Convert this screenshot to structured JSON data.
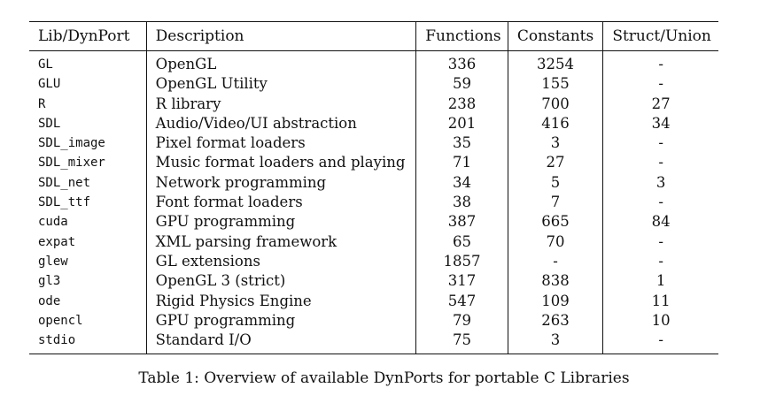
{
  "table": {
    "headers": {
      "lib": "Lib/DynPort",
      "description": "Description",
      "functions": "Functions",
      "constants": "Constants",
      "struct_union": "Struct/Union"
    },
    "rows": [
      {
        "lib": "GL",
        "description": "OpenGL",
        "functions": "336",
        "constants": "3254",
        "struct_union": "-"
      },
      {
        "lib": "GLU",
        "description": "OpenGL Utility",
        "functions": "59",
        "constants": "155",
        "struct_union": "-"
      },
      {
        "lib": "R",
        "description": "R library",
        "functions": "238",
        "constants": "700",
        "struct_union": "27"
      },
      {
        "lib": "SDL",
        "description": "Audio/Video/UI abstraction",
        "functions": "201",
        "constants": "416",
        "struct_union": "34"
      },
      {
        "lib": "SDL_image",
        "description": "Pixel format loaders",
        "functions": "35",
        "constants": "3",
        "struct_union": "-"
      },
      {
        "lib": "SDL_mixer",
        "description": "Music format loaders and playing",
        "functions": "71",
        "constants": "27",
        "struct_union": "-"
      },
      {
        "lib": "SDL_net",
        "description": "Network programming",
        "functions": "34",
        "constants": "5",
        "struct_union": "3"
      },
      {
        "lib": "SDL_ttf",
        "description": "Font format loaders",
        "functions": "38",
        "constants": "7",
        "struct_union": "-"
      },
      {
        "lib": "cuda",
        "description": "GPU programming",
        "functions": "387",
        "constants": "665",
        "struct_union": "84"
      },
      {
        "lib": "expat",
        "description": "XML parsing framework",
        "functions": "65",
        "constants": "70",
        "struct_union": "-"
      },
      {
        "lib": "glew",
        "description": "GL extensions",
        "functions": "1857",
        "constants": "-",
        "struct_union": "-"
      },
      {
        "lib": "gl3",
        "description": "OpenGL 3 (strict)",
        "functions": "317",
        "constants": "838",
        "struct_union": "1"
      },
      {
        "lib": "ode",
        "description": "Rigid Physics Engine",
        "functions": "547",
        "constants": "109",
        "struct_union": "11"
      },
      {
        "lib": "opencl",
        "description": "GPU programming",
        "functions": "79",
        "constants": "263",
        "struct_union": "10"
      },
      {
        "lib": "stdio",
        "description": "Standard I/O",
        "functions": "75",
        "constants": "3",
        "struct_union": "-"
      }
    ]
  },
  "caption": "Table 1:  Overview of available DynPorts for portable C Libraries"
}
